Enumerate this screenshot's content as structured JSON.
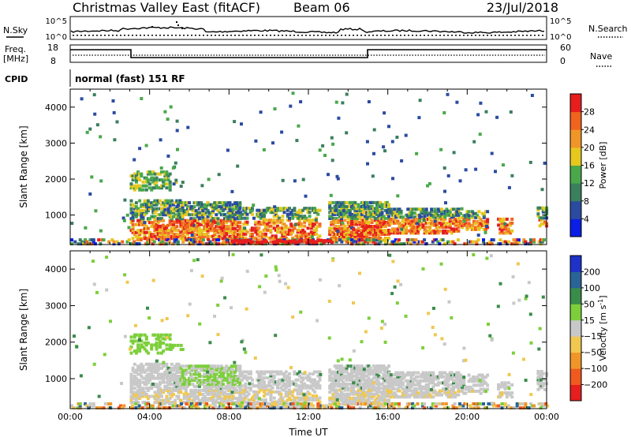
{
  "header": {
    "title": "Christmas Valley East (fitACF)",
    "beam": "Beam 06",
    "date": "23/Jul/2018"
  },
  "top_panels": {
    "nsky_label": "N.Sky",
    "nsky_ticks": [
      "10^5",
      "10^0"
    ],
    "nsearch_label": "N.Search",
    "nsearch_ticks": [
      "10^5",
      "10^0"
    ],
    "freq_label": "Freq.",
    "freq_unit": "[MHz]",
    "freq_ticks": [
      "18",
      "8"
    ],
    "nave_label": "Nave",
    "nave_ticks": [
      "60",
      "0"
    ],
    "cpid_label": "CPID",
    "cpid_value": "normal (fast) 151 RF"
  },
  "chart_data": [
    {
      "type": "heatmap",
      "name": "power-panel",
      "ylabel": "Slant Range [km]",
      "y_ticks": [
        "1000",
        "2000",
        "3000",
        "4000"
      ],
      "y_tick_values": [
        1000,
        2000,
        3000,
        4000
      ],
      "ylim": [
        180,
        4500
      ],
      "x_ticks": [
        "00:00",
        "04:00",
        "08:00",
        "12:00",
        "16:00",
        "20:00",
        "00:00"
      ],
      "xlim": [
        0,
        24
      ],
      "colorbar": {
        "label": "Power [dB]",
        "ticks": [
          "4",
          "8",
          "12",
          "16",
          "20",
          "24",
          "28"
        ],
        "colors": [
          "#0a1ee6",
          "#2a4ba0",
          "#3a7f5e",
          "#49a84a",
          "#e6c81e",
          "#f09628",
          "#f0641e",
          "#e61e1e"
        ]
      }
    },
    {
      "type": "heatmap",
      "name": "velocity-panel",
      "ylabel": "Slant Range [km]",
      "y_ticks": [
        "1000",
        "2000",
        "3000",
        "4000"
      ],
      "y_tick_values": [
        1000,
        2000,
        3000,
        4000
      ],
      "ylim": [
        180,
        4500
      ],
      "x_ticks": [
        "00:00",
        "04:00",
        "08:00",
        "12:00",
        "16:00",
        "20:00",
        "00:00"
      ],
      "xlim": [
        0,
        24
      ],
      "xlabel": "Time UT",
      "colorbar": {
        "label": "Velocity [m s",
        "label_sup": "-1",
        "label_end": "]",
        "ticks": [
          "200",
          "100",
          "50",
          "15",
          "−15",
          "−50",
          "−100",
          "−200"
        ],
        "colors": [
          "#1e32c8",
          "#2a6496",
          "#3a8c4a",
          "#7ccf3a",
          "#c8c8c8",
          "#f0c850",
          "#f09628",
          "#f05a1e",
          "#e61e1e"
        ]
      }
    }
  ]
}
